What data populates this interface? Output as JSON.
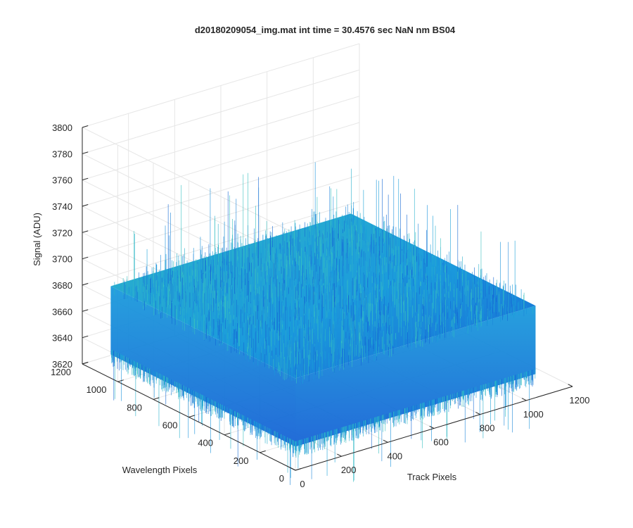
{
  "chart_data": {
    "type": "surface",
    "title": "d20180209054_img.mat int time = 30.4576 sec  NaN nm BS04",
    "xlabel": "Track Pixels",
    "ylabel": "Wavelength Pixels",
    "zlabel": "Signal (ADU)",
    "xlim": [
      0,
      1200
    ],
    "ylim": [
      0,
      1200
    ],
    "zlim": [
      3620,
      3800
    ],
    "xticks": [
      "0",
      "200",
      "400",
      "600",
      "800",
      "1000",
      "1200"
    ],
    "yticks": [
      "0",
      "200",
      "400",
      "600",
      "800",
      "1000",
      "1200"
    ],
    "zticks": [
      "3620",
      "3640",
      "3660",
      "3680",
      "3700",
      "3720",
      "3740",
      "3760",
      "3780",
      "3800"
    ],
    "grid": true,
    "colormap": "parula",
    "surface": {
      "x_extent": [
        0,
        1040
      ],
      "y_extent": [
        0,
        1040
      ],
      "z_mean": 3665,
      "z_min": 3620,
      "z_max": 3740,
      "typical_band": [
        3650,
        3690
      ],
      "description_color": "#1d8fd8"
    },
    "colors": {
      "surface_dark": "#1763d6",
      "surface_mid": "#1b9bdc",
      "surface_light": "#2fb6c8",
      "grid": "#e6e6e6",
      "axis": "#262626"
    }
  }
}
